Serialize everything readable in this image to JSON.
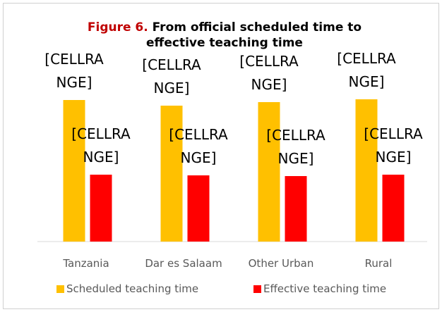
{
  "chart_data": {
    "type": "bar",
    "title_label": "Figure 6.",
    "title": "From official scheduled time to effective teaching time",
    "categories": [
      "Tanzania",
      "Dar es Salaam",
      "Other Urban",
      "Rural"
    ],
    "series": [
      {
        "name": "Scheduled teaching time",
        "color": "#FFC000",
        "values": [
          201,
          193,
          198,
          202
        ],
        "value_labels": [
          "[CELLRANGE]",
          "[CELLRANGE]",
          "[CELLRANGE]",
          "[CELLRANGE]"
        ]
      },
      {
        "name": "Effective teaching time",
        "color": "#FF0000",
        "values": [
          95,
          94,
          93,
          95
        ],
        "value_labels": [
          "[CELLRANGE]",
          "[CELLRANGE]",
          "[CELLRANGE]",
          "[CELLRANGE]"
        ]
      }
    ],
    "ylim": [
      0,
      220
    ],
    "legend": "bottom"
  }
}
